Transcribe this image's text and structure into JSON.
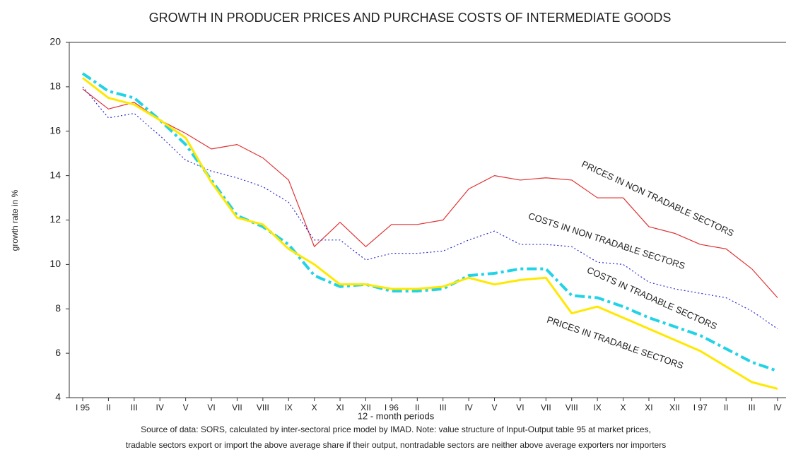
{
  "chart_data": {
    "type": "line",
    "title": "GROWTH IN PRODUCER PRICES AND PURCHASE COSTS OF INTERMEDIATE GOODS",
    "y_label": "growth rate in %",
    "x_label": "12 - month periods",
    "source": [
      "Source of data: SORS, calculated by inter-sectoral price model by IMAD. Note: value structure of Input-Output table 95 at market prices,",
      "tradable sectors export or import the above average share if their output, nontradable sectors are neither above average exporters nor importers"
    ],
    "categories": [
      "I 95",
      "II",
      "III",
      "IV",
      "V",
      "VI",
      "VII",
      "VIII",
      "IX",
      "X",
      "XI",
      "XII",
      "I 96",
      "II",
      "III",
      "IV",
      "V",
      "VI",
      "VII",
      "VIII",
      "IX",
      "X",
      "XI",
      "XII",
      "I 97",
      "II",
      "III",
      "IV"
    ],
    "ylim": [
      4,
      20
    ],
    "yticks": [
      4,
      6,
      8,
      10,
      12,
      14,
      16,
      18,
      20
    ],
    "annotations": [
      "PRICES IN NON TRADABLE SECTORS",
      "COSTS IN NON TRADABLE SECTORS",
      "COSTS IN TRADABLE SECTORS",
      "PRICES IN TRADABLE SECTORS"
    ],
    "series": [
      {
        "name": "PRICES IN NON TRADABLE SECTORS",
        "color": "#e03232",
        "line_style": "solid",
        "width": 1.2,
        "values": [
          17.9,
          17.0,
          17.3,
          16.5,
          15.9,
          15.2,
          15.4,
          14.8,
          13.8,
          10.8,
          11.9,
          10.8,
          11.8,
          11.8,
          12.0,
          13.4,
          14.0,
          13.8,
          13.9,
          13.8,
          13.0,
          13.0,
          11.7,
          11.4,
          10.9,
          10.7,
          9.8,
          8.5
        ]
      },
      {
        "name": "COSTS IN NON TRADABLE SECTORS",
        "color": "#2a2ad0",
        "line_style": "dotted",
        "width": 1.2,
        "values": [
          18.0,
          16.6,
          16.8,
          15.8,
          14.7,
          14.2,
          13.9,
          13.5,
          12.8,
          11.1,
          11.1,
          10.2,
          10.5,
          10.5,
          10.6,
          11.1,
          11.5,
          10.9,
          10.9,
          10.8,
          10.1,
          10.0,
          9.2,
          8.9,
          8.7,
          8.5,
          7.9,
          7.1
        ]
      },
      {
        "name": "COSTS IN TRADABLE SECTORS",
        "color": "#22d3e6",
        "line_style": "dashdot",
        "width": 4,
        "values": [
          18.6,
          17.8,
          17.5,
          16.5,
          15.4,
          13.8,
          12.2,
          11.7,
          10.9,
          9.5,
          9.0,
          9.1,
          8.8,
          8.8,
          8.9,
          9.5,
          9.6,
          9.8,
          9.8,
          8.6,
          8.5,
          8.1,
          7.6,
          7.2,
          6.8,
          6.2,
          5.6,
          5.2
        ]
      },
      {
        "name": "PRICES IN TRADABLE SECTORS",
        "color": "#ffe800",
        "line_style": "solid",
        "width": 3,
        "values": [
          18.4,
          17.5,
          17.2,
          16.5,
          15.7,
          13.7,
          12.1,
          11.8,
          10.7,
          10.0,
          9.1,
          9.1,
          8.9,
          8.9,
          9.0,
          9.4,
          9.1,
          9.3,
          9.4,
          7.8,
          8.1,
          7.6,
          7.1,
          6.6,
          6.1,
          5.4,
          4.7,
          4.4
        ]
      }
    ]
  }
}
